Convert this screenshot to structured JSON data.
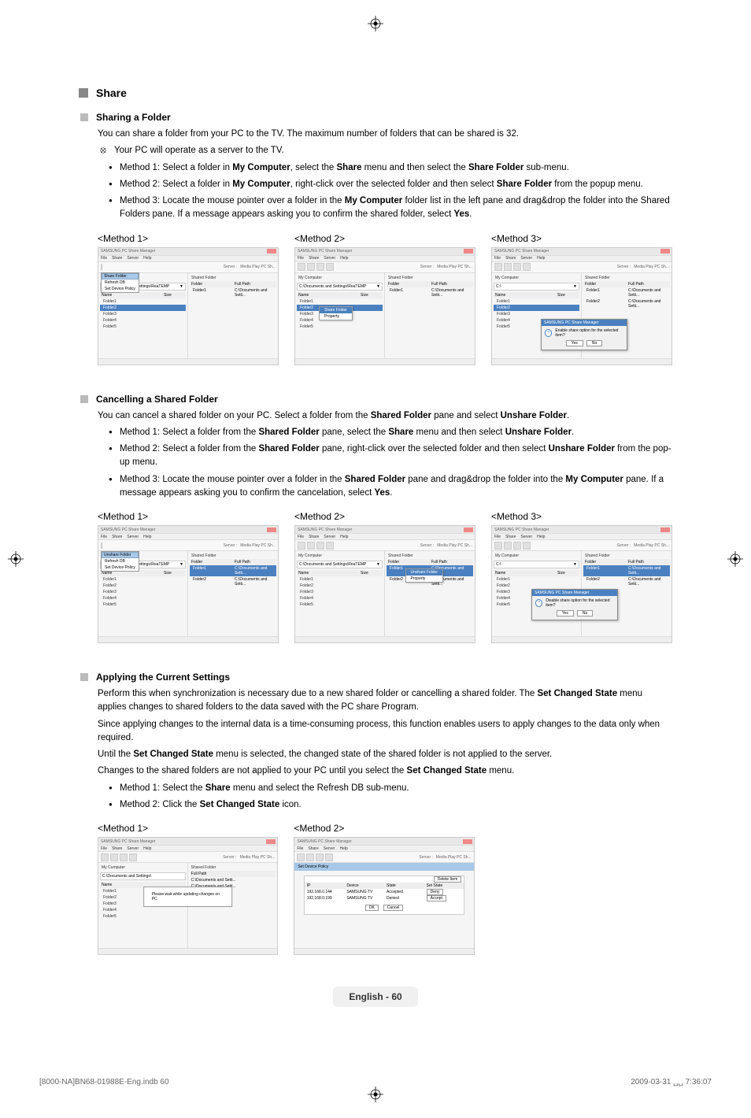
{
  "colors": {
    "text": "#000000",
    "muted": "#666666",
    "panel_bg": "#f5f5f5",
    "highlight_bg": "#a8c8e8",
    "select_bg": "#4a80c0",
    "footer_bg": "#f0f0f0"
  },
  "share": {
    "title": "Share",
    "sharing": {
      "heading": "Sharing a Folder",
      "intro": "You can share a folder from your PC to the TV. The maximum number of folders that can be shared is 32.",
      "note": "Your PC will operate as a server to the TV.",
      "methods": [
        "Method 1: Select a folder in <b>My Computer</b>, select the <b>Share</b> menu and then select the <b>Share Folder</b> sub-menu.",
        "Method 2: Select a folder in <b>My Computer</b>, right-click over the selected folder and then select <b>Share Folder</b> from the popup menu.",
        "Method 3: Locate the mouse pointer over a folder in the <b>My Computer</b> folder list in the left pane and drag&drop the folder into the Shared Folders pane. If a message appears asking you to confirm the shared folder, select <b>Yes</b>."
      ],
      "labels": [
        "<Method 1>",
        "<Method 2>",
        "<Method 3>"
      ]
    },
    "cancelling": {
      "heading": "Cancelling a Shared Folder",
      "intro": "You can cancel a shared folder on your PC. Select a folder from the <b>Shared Folder</b> pane and select <b>Unshare Folder</b>.",
      "methods": [
        "Method 1: Select a folder from the <b>Shared Folder</b> pane, select the <b>Share</b> menu and then select <b>Unshare Folder</b>.",
        "Method 2: Select a folder from the <b>Shared Folder</b> pane, right-click over the selected folder and then select <b>Unshare Folder</b> from the pop-up menu.",
        "Method 3: Locate the mouse pointer over a folder in the <b>Shared Folder</b> pane and drag&drop the folder into the <b>My Computer</b> pane. If a message appears asking you to confirm the cancelation, select <b>Yes</b>."
      ],
      "labels": [
        "<Method 1>",
        "<Method 2>",
        "<Method 3>"
      ]
    },
    "applying": {
      "heading": "Applying the Current Settings",
      "p1": "Perform this when synchronization is necessary due to a new shared folder or cancelling a shared folder. The <b>Set Changed State</b> menu applies changes to shared folders to the data saved with the PC share Program.",
      "p2": "Since applying changes to the internal data is a time-consuming process, this function enables users to apply changes to the data only when required.",
      "p3": "Until the <b>Set Changed State</b> menu is selected, the changed state of the shared folder is not applied to the server.",
      "p4": "Changes to the shared folders are not applied to your PC until you select the <b>Set Changed State</b> menu.",
      "methods": [
        "Method 1: Select the <b>Share</b> menu and select the Refresh DB sub-menu.",
        "Method 2: Click the <b>Set Changed State</b> icon."
      ],
      "labels": [
        "<Method 1>",
        "<Method 2>"
      ]
    }
  },
  "app": {
    "title": "SAMSUNG PC Share Manager",
    "menus": [
      "File",
      "Share",
      "Server",
      "Help"
    ],
    "server_label": "Server :",
    "server_value": "Media Play PC Sh...",
    "left_header": "My Computer",
    "right_header": "Shared Folder",
    "path": "C:\\Documents and Settings\\ReaTEMP",
    "cols_left": [
      "Name",
      "Size"
    ],
    "cols_right": [
      "Folder",
      "Full Path"
    ],
    "folders": [
      "Folder1",
      "Folder2",
      "Folder3",
      "Folder4",
      "Folder5"
    ],
    "shared_rows": [
      {
        "folder": "Folder1",
        "path": "C:\\Documents and Setti..."
      },
      {
        "folder": "Folder2",
        "path": "C:\\Documents and Setti..."
      }
    ],
    "submenu": {
      "share_folder": "Share Folder",
      "unshare_folder": "Unshare Folder",
      "refresh_db": "Refresh DB",
      "set_device_policy": "Set Device Policy"
    },
    "ctx": {
      "share_folder": "Share Folder",
      "unshare_folder": "Unshare Folder",
      "property": "Property"
    },
    "dialog": {
      "title": "SAMSUNG PC Share Manager",
      "question_enable": "Enable share option for the selected item?",
      "question_disable": "Disable share option for the selected item?",
      "yes": "Yes",
      "no": "No"
    },
    "wait_msg": "Please wait while updating changes on PC",
    "policy": {
      "title": "Set Device Policy",
      "headers": [
        "IP",
        "Device",
        "State",
        "Set State"
      ],
      "rows": [
        {
          "ip": "192.168.0.144",
          "device": "SAMSUNG TV",
          "state": "Accepted",
          "set": "Deny"
        },
        {
          "ip": "192.168.0.199",
          "device": "SAMSUNG TV",
          "state": "Denied",
          "set": "Accept"
        }
      ],
      "ok": "OK",
      "cancel": "Cancel",
      "delete": "Delete Item"
    }
  },
  "footer": "English - 60",
  "meta": {
    "left": "[8000-NA]BN68-01988E-Eng.indb   60",
    "right": "2009-03-31   ␣␣ 7:36:07"
  }
}
